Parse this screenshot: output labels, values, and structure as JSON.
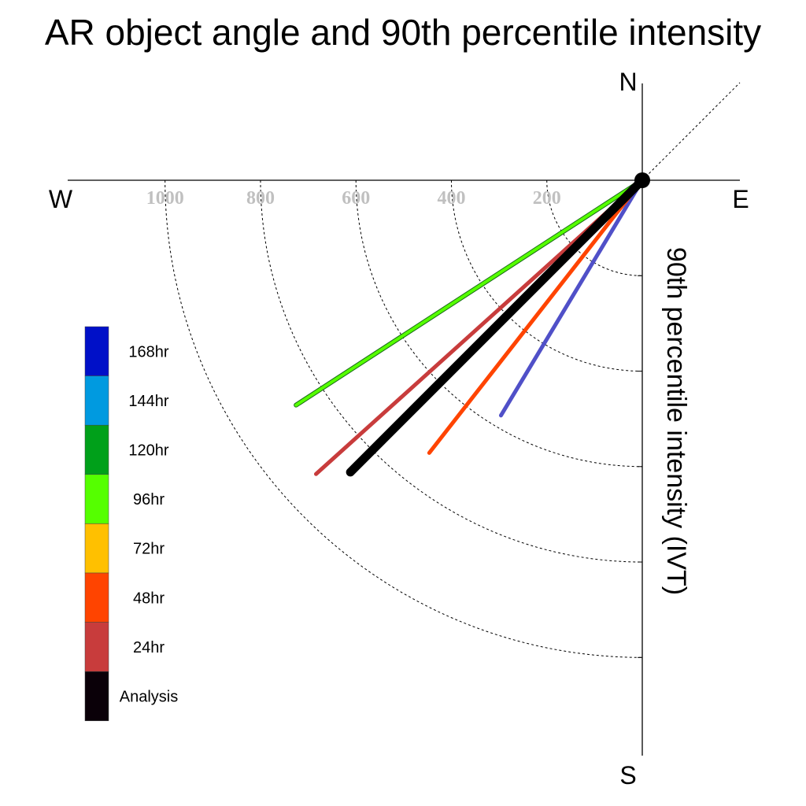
{
  "chart_data": {
    "type": "polar-vector",
    "title": "AR object angle and 90th percentile intensity",
    "ylabel": "90th percentile intensity (IVT)",
    "compass": {
      "north": "N",
      "south": "S",
      "east": "E",
      "west": "W"
    },
    "rings": [
      200,
      400,
      600,
      800,
      1000
    ],
    "ring_labels": [
      "200",
      "400",
      "600",
      "800",
      "1000"
    ],
    "axis_max": 1200,
    "angle_convention": "degrees measured from East toward South",
    "series": [
      {
        "name": "168hr",
        "color": "#5050c8",
        "angle": 59,
        "intensity": 575,
        "width": 5
      },
      {
        "name": "96hr",
        "color": "#55ff00",
        "angle": 33,
        "intensity": 865,
        "width": 6
      },
      {
        "name": "72hr",
        "color": "#ffc000",
        "angle": 33,
        "intensity": 20,
        "width": 6
      },
      {
        "name": "24hr",
        "color": "#c83c3c",
        "angle": 42,
        "intensity": 920,
        "width": 5
      },
      {
        "name": "48hr",
        "color": "#ff4400",
        "angle": 52,
        "intensity": 725,
        "width": 5
      },
      {
        "name": "Analysis",
        "color": "#000000",
        "angle": 45,
        "intensity": 865,
        "width": 11
      }
    ],
    "legend": [
      {
        "name": "168hr",
        "color": "#0010c8"
      },
      {
        "name": "144hr",
        "color": "#009ae0"
      },
      {
        "name": "120hr",
        "color": "#00a01a"
      },
      {
        "name": "96hr",
        "color": "#55ff00"
      },
      {
        "name": "72hr",
        "color": "#ffc000"
      },
      {
        "name": "48hr",
        "color": "#ff4400"
      },
      {
        "name": "24hr",
        "color": "#c83c3c"
      },
      {
        "name": "Analysis",
        "color": "#0a0008"
      }
    ],
    "grid": true,
    "legend_placement": "left"
  }
}
